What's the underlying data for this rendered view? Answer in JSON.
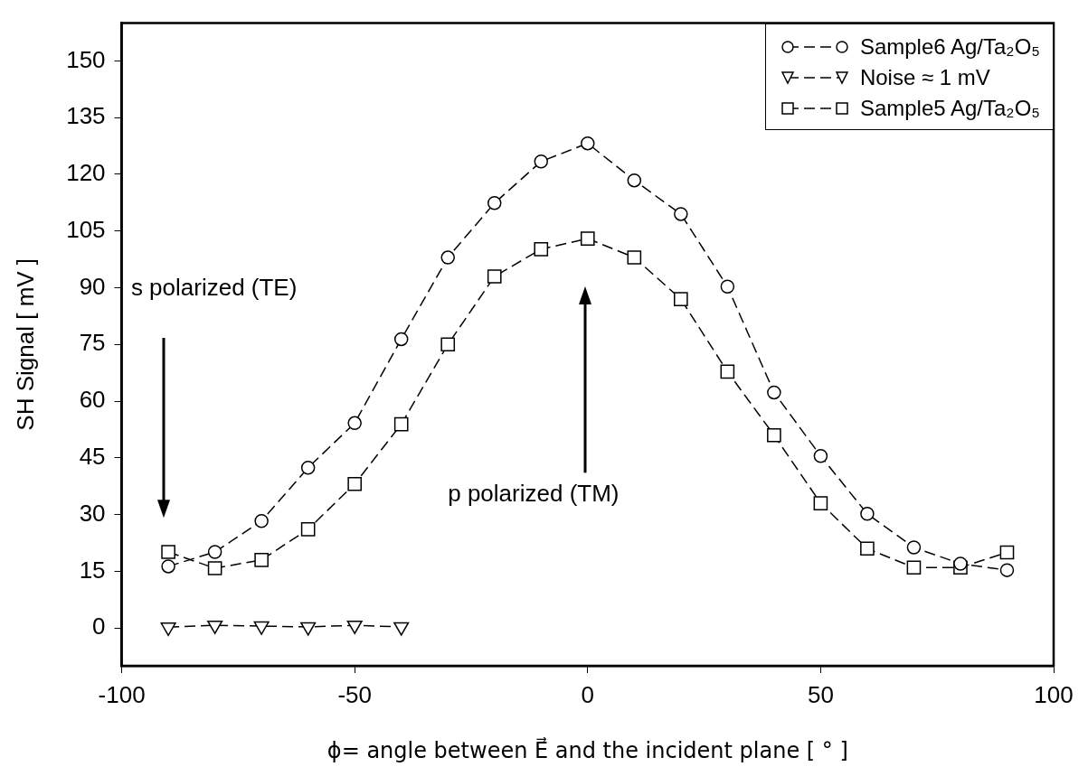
{
  "chart_data": {
    "type": "line",
    "xlabel": "ϕ= angle between E⃗ and the incident plane [ ° ]",
    "ylabel": "SH Signal [ mV ]",
    "xlim": [
      -100,
      100
    ],
    "xticks": [
      -100,
      -50,
      0,
      50,
      100
    ],
    "ylim": [
      -10,
      160
    ],
    "yticks": [
      0,
      15,
      30,
      45,
      60,
      75,
      90,
      105,
      120,
      135,
      150
    ],
    "grid": false,
    "legend": "top right",
    "annotations": [
      "s polarized (TE)",
      "p polarized (TM)"
    ],
    "series": [
      {
        "name": "Sample6 Ag/Ta₂O₅",
        "color": "#000000",
        "marker": "circle",
        "line_style": "dashed",
        "x": [
          -90,
          -80,
          -70,
          -60,
          -50,
          -40,
          -30,
          -20,
          -10,
          0,
          10,
          20,
          30,
          40,
          50,
          60,
          70,
          80,
          90
        ],
        "values": [
          16.3,
          20.1,
          28.3,
          42.4,
          54.2,
          76.4,
          98,
          112.4,
          123.4,
          128.2,
          118.4,
          109.5,
          90.3,
          62.3,
          45.5,
          30.2,
          21.3,
          17,
          15.3
        ]
      },
      {
        "name": "Noise ≈ 1 mV",
        "color": "#000000",
        "marker": "triangle",
        "line_style": "dashed",
        "x": [
          -90,
          -80,
          -70,
          -60,
          -50,
          -40
        ],
        "values": [
          0.2,
          0.7,
          0.5,
          0.3,
          0.7,
          0.3
        ]
      },
      {
        "name": "Sample5 Ag/Ta₂O₅",
        "color": "#000000",
        "marker": "square",
        "line_style": "dashed",
        "x": [
          -90,
          -80,
          -70,
          -60,
          -50,
          -40,
          -30,
          -20,
          -10,
          0,
          10,
          20,
          30,
          40,
          50,
          60,
          70,
          80,
          90
        ],
        "values": [
          20.1,
          15.8,
          18,
          26.1,
          38.1,
          53.9,
          75,
          93,
          100.2,
          103,
          98,
          87,
          67.8,
          51,
          33,
          21,
          16,
          16,
          20
        ]
      }
    ]
  }
}
